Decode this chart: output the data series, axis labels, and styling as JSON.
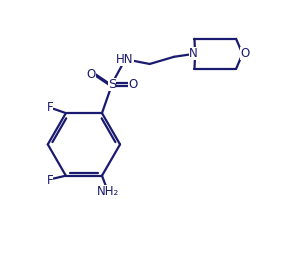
{
  "bg_color": "#ffffff",
  "line_color": "#1a1a6e",
  "line_width": 1.6,
  "font_size": 8.5,
  "fig_width": 2.95,
  "fig_height": 2.57,
  "xlim": [
    0,
    10
  ],
  "ylim": [
    0,
    8.7
  ]
}
